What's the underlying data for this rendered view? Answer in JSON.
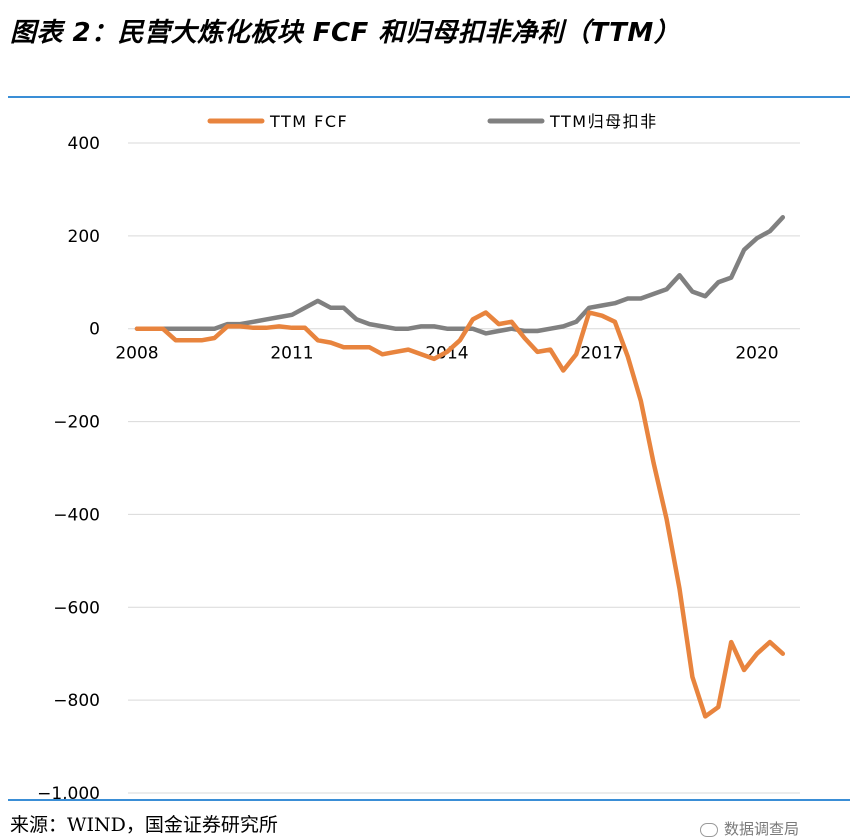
{
  "header": {
    "title": "图表 2：民营大炼化板块 FCF 和归母扣非净利（TTM）"
  },
  "footer": {
    "source": "来源：WIND，国金证券研究所",
    "watermark": "数据调查局"
  },
  "chart_data": {
    "type": "line",
    "title": "",
    "xlabel": "",
    "ylabel": "",
    "ylim": [
      -1000,
      400
    ],
    "yticks": [
      400,
      200,
      0,
      -200,
      -400,
      -600,
      -800,
      -1000
    ],
    "ytick_labels": [
      "400",
      "200",
      "0",
      "−200",
      "−400",
      "−600",
      "−800",
      "−1,000"
    ],
    "xlim": [
      2008,
      2021
    ],
    "xticks": [
      2008,
      2011,
      2014,
      2017,
      2020
    ],
    "xtick_labels": [
      "2008",
      "2011",
      "2014",
      "2017",
      "2020"
    ],
    "grid": "horizontal",
    "legend": "top-center",
    "x": [
      2008.0,
      2008.25,
      2008.5,
      2008.75,
      2009.0,
      2009.25,
      2009.5,
      2009.75,
      2010.0,
      2010.25,
      2010.5,
      2010.75,
      2011.0,
      2011.25,
      2011.5,
      2011.75,
      2012.0,
      2012.25,
      2012.5,
      2012.75,
      2013.0,
      2013.25,
      2013.5,
      2013.75,
      2014.0,
      2014.25,
      2014.5,
      2014.75,
      2015.0,
      2015.25,
      2015.5,
      2015.75,
      2016.0,
      2016.25,
      2016.5,
      2016.75,
      2017.0,
      2017.25,
      2017.5,
      2017.75,
      2018.0,
      2018.25,
      2018.5,
      2018.75,
      2019.0,
      2019.25,
      2019.5,
      2019.75,
      2020.0,
      2020.25,
      2020.5
    ],
    "series": [
      {
        "name": "TTM FCF",
        "color": "#e8843e",
        "values": [
          0,
          0,
          0,
          -25,
          -25,
          -25,
          -20,
          5,
          5,
          2,
          2,
          5,
          2,
          2,
          -25,
          -30,
          -40,
          -40,
          -40,
          -55,
          -50,
          -45,
          -55,
          -65,
          -50,
          -25,
          20,
          35,
          10,
          15,
          -20,
          -50,
          -45,
          -90,
          -55,
          35,
          28,
          15,
          -60,
          -155,
          -290,
          -410,
          -560,
          -750,
          -835,
          -815,
          -675,
          -735,
          -700,
          -675,
          -700
        ]
      },
      {
        "name": "TTM归母扣非",
        "color": "#808080",
        "values": [
          0,
          0,
          0,
          0,
          0,
          0,
          0,
          10,
          10,
          15,
          20,
          25,
          30,
          45,
          60,
          45,
          45,
          20,
          10,
          5,
          0,
          0,
          5,
          5,
          0,
          0,
          0,
          -10,
          -5,
          0,
          -5,
          -5,
          0,
          5,
          15,
          45,
          50,
          55,
          65,
          65,
          75,
          85,
          115,
          80,
          70,
          100,
          110,
          170,
          195,
          210,
          240
        ]
      }
    ]
  }
}
